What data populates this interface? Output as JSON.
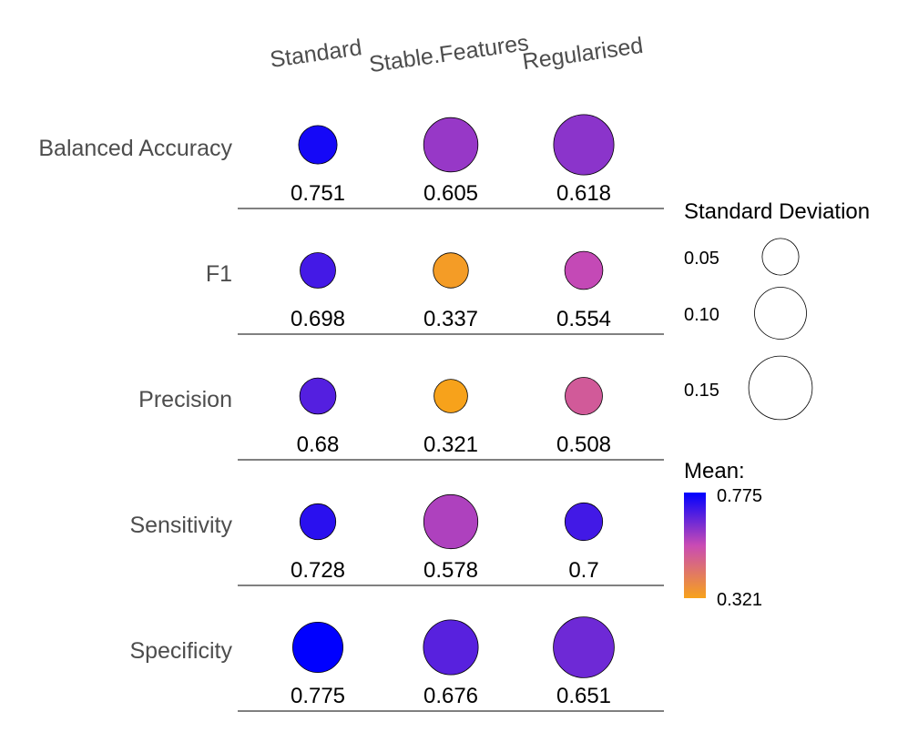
{
  "chart_data": {
    "type": "bubble-matrix",
    "columns": [
      "Standard",
      "Stable.Features",
      "Regularised"
    ],
    "rows": [
      "Balanced Accuracy",
      "F1",
      "Precision",
      "Sensitivity",
      "Specificity"
    ],
    "mean": [
      [
        0.751,
        0.605,
        0.618
      ],
      [
        0.698,
        0.337,
        0.554
      ],
      [
        0.68,
        0.321,
        0.508
      ],
      [
        0.728,
        0.578,
        0.7
      ],
      [
        0.775,
        0.676,
        0.651
      ]
    ],
    "mean_labels": [
      [
        "0.751",
        "0.605",
        "0.618"
      ],
      [
        "0.698",
        "0.337",
        "0.554"
      ],
      [
        "0.68",
        "0.321",
        "0.508"
      ],
      [
        "0.728",
        "0.578",
        "0.7"
      ],
      [
        "0.775",
        "0.676",
        "0.651"
      ]
    ],
    "standard_deviation": [
      [
        0.055,
        0.11,
        0.135
      ],
      [
        0.047,
        0.046,
        0.054
      ],
      [
        0.049,
        0.042,
        0.052
      ],
      [
        0.048,
        0.109,
        0.053
      ],
      [
        0.094,
        0.112,
        0.138
      ]
    ],
    "size_legend": {
      "title": "Standard Deviation",
      "values": [
        0.05,
        0.1,
        0.15
      ],
      "labels": [
        "0.05",
        "0.10",
        "0.15"
      ]
    },
    "color_legend": {
      "title": "Mean:",
      "min": 0.321,
      "max": 0.775,
      "min_label": "0.321",
      "max_label": "0.775",
      "low_color": "#f7a21b",
      "mid_color": "#c94bb4",
      "high_color": "#0000ff"
    }
  }
}
